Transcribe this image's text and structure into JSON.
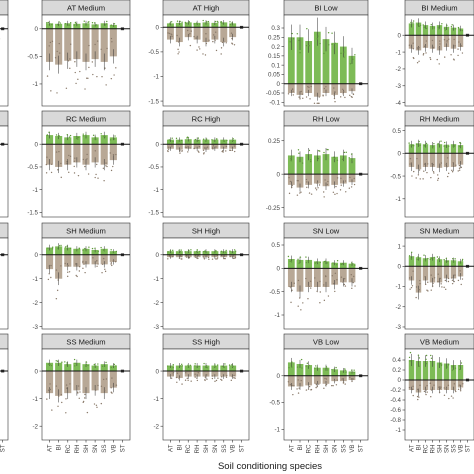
{
  "chart_data": {
    "type": "bar",
    "xlabel": "Soil conditioning species",
    "ylabel": "",
    "categories": [
      "AT",
      "BI",
      "RC",
      "RH",
      "SH",
      "SN",
      "SS",
      "VB",
      "ST"
    ],
    "legend": "none",
    "grid": false,
    "colors": {
      "positive": "#7dbb56",
      "negative": "#b8a896",
      "error_bar": "#333333",
      "points_pos": "#5f9a3a",
      "points_neg": "#8a7a6a",
      "strip": "#d9d9d9"
    },
    "panels": [
      {
        "title": "",
        "row": 0,
        "col": 0,
        "show_y_ticks": false,
        "ylim": [
          -1.4,
          0.25
        ],
        "yticks": [],
        "series": [
          {
            "name": "pos",
            "values": [
              0.05,
              0.05,
              0.05,
              0.05,
              0.05,
              0.05,
              0.05,
              0.05,
              0.0
            ]
          },
          {
            "name": "neg",
            "values": [
              -0.3,
              -0.35,
              -0.3,
              -0.3,
              -0.25,
              -0.3,
              -0.3,
              -0.3,
              0.0
            ]
          }
        ]
      },
      {
        "title": "AT Medium",
        "row": 0,
        "col": 1,
        "ylim": [
          -1.4,
          0.25
        ],
        "yticks": [
          -1.0,
          -0.5,
          0.0
        ],
        "series": [
          {
            "name": "pos",
            "values": [
              0.1,
              0.09,
              0.1,
              0.09,
              0.1,
              0.08,
              0.1,
              0.07,
              0.0
            ]
          },
          {
            "name": "neg",
            "values": [
              -0.6,
              -0.65,
              -0.58,
              -0.55,
              -0.6,
              -0.55,
              -0.6,
              -0.5,
              0.0
            ]
          }
        ]
      },
      {
        "title": "AT High",
        "row": 0,
        "col": 2,
        "ylim": [
          -1.6,
          0.25
        ],
        "yticks": [
          -1.5,
          -1.0,
          -0.5,
          0.0
        ],
        "series": [
          {
            "name": "pos",
            "values": [
              0.08,
              0.09,
              0.1,
              0.09,
              0.1,
              0.09,
              0.1,
              0.08,
              0.0
            ]
          },
          {
            "name": "neg",
            "values": [
              -0.25,
              -0.3,
              -0.2,
              -0.25,
              -0.3,
              -0.25,
              -0.3,
              -0.2,
              0.0
            ]
          }
        ]
      },
      {
        "title": "BI Low",
        "row": 0,
        "col": 3,
        "ylim": [
          -0.12,
          0.37
        ],
        "yticks": [
          -0.1,
          -0.05,
          0.0,
          0.05,
          0.1,
          0.15,
          0.2,
          0.25,
          0.3
        ],
        "series": [
          {
            "name": "pos",
            "values": [
              0.25,
              0.25,
              0.23,
              0.28,
              0.24,
              0.22,
              0.2,
              0.15,
              0.0
            ]
          },
          {
            "name": "neg",
            "values": [
              -0.05,
              -0.06,
              -0.05,
              -0.07,
              -0.05,
              -0.06,
              -0.05,
              -0.04,
              0.0
            ]
          }
        ]
      },
      {
        "title": "BI Medium",
        "row": 0,
        "col": 4,
        "ylim": [
          -4.2,
          1.2
        ],
        "yticks": [
          -4,
          -3,
          -2,
          -1,
          0
        ],
        "series": [
          {
            "name": "pos",
            "values": [
              0.7,
              0.75,
              0.6,
              0.55,
              0.6,
              0.5,
              0.45,
              0.4,
              0.0
            ]
          },
          {
            "name": "neg",
            "values": [
              -0.8,
              -0.9,
              -0.75,
              -0.8,
              -0.9,
              -0.7,
              -0.8,
              -0.7,
              0.0
            ]
          }
        ]
      },
      {
        "title": "",
        "row": 1,
        "col": 0,
        "show_y_ticks": false,
        "ylim": [
          -1.6,
          0.4
        ],
        "yticks": [],
        "series": [
          {
            "name": "pos",
            "values": [
              0.1,
              0.1,
              0.1,
              0.1,
              0.1,
              0.1,
              0.1,
              0.1,
              0.0
            ]
          },
          {
            "name": "neg",
            "values": [
              -0.2,
              -0.25,
              -0.2,
              -0.2,
              -0.2,
              -0.2,
              -0.2,
              -0.2,
              0.0
            ]
          }
        ]
      },
      {
        "title": "RC Medium",
        "row": 1,
        "col": 1,
        "ylim": [
          -1.6,
          0.4
        ],
        "yticks": [
          -1.5,
          -1.0,
          -0.5,
          0.0
        ],
        "series": [
          {
            "name": "pos",
            "values": [
              0.2,
              0.18,
              0.15,
              0.18,
              0.2,
              0.15,
              0.2,
              0.15,
              0.0
            ]
          },
          {
            "name": "neg",
            "values": [
              -0.45,
              -0.5,
              -0.45,
              -0.4,
              -0.45,
              -0.4,
              -0.45,
              -0.35,
              0.0
            ]
          }
        ]
      },
      {
        "title": "RC High",
        "row": 1,
        "col": 2,
        "ylim": [
          -1.6,
          0.4
        ],
        "yticks": [
          -1.5,
          -1.0,
          -0.5,
          0.0
        ],
        "series": [
          {
            "name": "pos",
            "values": [
              0.1,
              0.1,
              0.11,
              0.1,
              0.1,
              0.1,
              0.1,
              0.1,
              0.0
            ]
          },
          {
            "name": "neg",
            "values": [
              -0.1,
              -0.12,
              -0.1,
              -0.1,
              -0.12,
              -0.1,
              -0.1,
              -0.1,
              0.0
            ]
          }
        ]
      },
      {
        "title": "RH Low",
        "row": 1,
        "col": 3,
        "ylim": [
          -0.32,
          0.36
        ],
        "yticks": [
          -0.25,
          0.0,
          0.25
        ],
        "series": [
          {
            "name": "pos",
            "values": [
              0.14,
              0.13,
              0.15,
              0.14,
              0.15,
              0.13,
              0.14,
              0.12,
              0.0
            ]
          },
          {
            "name": "neg",
            "values": [
              -0.08,
              -0.1,
              -0.08,
              -0.07,
              -0.09,
              -0.08,
              -0.07,
              -0.06,
              0.0
            ]
          }
        ]
      },
      {
        "title": "RH Medium",
        "row": 1,
        "col": 4,
        "ylim": [
          -1.4,
          0.6
        ],
        "yticks": [
          -1.0,
          -0.5,
          0.0,
          0.5
        ],
        "series": [
          {
            "name": "pos",
            "values": [
              0.2,
              0.22,
              0.2,
              0.18,
              0.2,
              0.19,
              0.2,
              0.18,
              0.0
            ]
          },
          {
            "name": "neg",
            "values": [
              -0.3,
              -0.35,
              -0.3,
              -0.3,
              -0.32,
              -0.3,
              -0.3,
              -0.25,
              0.0
            ]
          }
        ]
      },
      {
        "title": "",
        "row": 2,
        "col": 0,
        "show_y_ticks": false,
        "ylim": [
          -3.1,
          0.7
        ],
        "yticks": [],
        "series": [
          {
            "name": "pos",
            "values": [
              0.2,
              0.2,
              0.2,
              0.2,
              0.2,
              0.2,
              0.2,
              0.2,
              0.0
            ]
          },
          {
            "name": "neg",
            "values": [
              -0.6,
              -0.7,
              -0.6,
              -0.6,
              -0.6,
              -0.6,
              -0.6,
              -0.6,
              0.0
            ]
          }
        ]
      },
      {
        "title": "SH Medium",
        "row": 2,
        "col": 1,
        "ylim": [
          -3.1,
          0.7
        ],
        "yticks": [
          -3,
          -2,
          -1,
          0
        ],
        "series": [
          {
            "name": "pos",
            "values": [
              0.3,
              0.35,
              0.3,
              0.25,
              0.25,
              0.2,
              0.25,
              0.15,
              0.0
            ]
          },
          {
            "name": "neg",
            "values": [
              -0.6,
              -1.0,
              -0.5,
              -0.5,
              -0.4,
              -0.4,
              -0.4,
              -0.3,
              0.0
            ]
          }
        ]
      },
      {
        "title": "SH High",
        "row": 2,
        "col": 2,
        "ylim": [
          -3.1,
          0.7
        ],
        "yticks": [
          -3,
          -2,
          -1,
          0
        ],
        "series": [
          {
            "name": "pos",
            "values": [
              0.15,
              0.15,
              0.15,
              0.15,
              0.15,
              0.15,
              0.15,
              0.15,
              0.0
            ]
          },
          {
            "name": "neg",
            "values": [
              -0.1,
              -0.1,
              -0.1,
              -0.1,
              -0.1,
              -0.1,
              -0.1,
              -0.1,
              0.0
            ]
          }
        ]
      },
      {
        "title": "SN Low",
        "row": 2,
        "col": 3,
        "ylim": [
          -1.3,
          0.65
        ],
        "yticks": [
          -1.0,
          -0.5,
          0.0,
          0.5
        ],
        "series": [
          {
            "name": "pos",
            "values": [
              0.2,
              0.18,
              0.18,
              0.15,
              0.15,
              0.12,
              0.12,
              0.1,
              0.0
            ]
          },
          {
            "name": "neg",
            "values": [
              -0.4,
              -0.5,
              -0.4,
              -0.4,
              -0.4,
              -0.35,
              -0.3,
              -0.3,
              0.0
            ]
          }
        ]
      },
      {
        "title": "SN Medium",
        "row": 2,
        "col": 4,
        "ylim": [
          -3.1,
          1.4
        ],
        "yticks": [
          -3,
          -2,
          -1,
          0,
          1
        ],
        "series": [
          {
            "name": "pos",
            "values": [
              0.5,
              0.45,
              0.4,
              0.45,
              0.35,
              0.3,
              0.3,
              0.25,
              0.0
            ]
          },
          {
            "name": "neg",
            "values": [
              -0.7,
              -1.3,
              -0.7,
              -0.8,
              -0.8,
              -0.6,
              -0.6,
              -0.5,
              0.0
            ]
          }
        ]
      },
      {
        "title": "",
        "row": 3,
        "col": 0,
        "show_y_ticks": false,
        "ylim": [
          -2.5,
          0.8
        ],
        "yticks": [],
        "series": [
          {
            "name": "pos",
            "values": [
              0.3,
              0.3,
              0.3,
              0.3,
              0.3,
              0.3,
              0.3,
              0.3,
              0.0
            ]
          },
          {
            "name": "neg",
            "values": [
              -0.4,
              -0.45,
              -0.4,
              -0.4,
              -0.4,
              -0.4,
              -0.4,
              -0.4,
              0.0
            ]
          }
        ]
      },
      {
        "title": "SS Medium",
        "row": 3,
        "col": 1,
        "ylim": [
          -2.5,
          0.8
        ],
        "yticks": [
          -2,
          -1,
          0
        ],
        "series": [
          {
            "name": "pos",
            "values": [
              0.3,
              0.3,
              0.25,
              0.3,
              0.25,
              0.2,
              0.25,
              0.2,
              0.0
            ]
          },
          {
            "name": "neg",
            "values": [
              -0.8,
              -0.9,
              -0.8,
              -0.7,
              -0.8,
              -0.7,
              -0.8,
              -0.6,
              0.0
            ]
          }
        ]
      },
      {
        "title": "SS High",
        "row": 3,
        "col": 2,
        "ylim": [
          -2.5,
          0.8
        ],
        "yticks": [
          -2,
          -1,
          0
        ],
        "series": [
          {
            "name": "pos",
            "values": [
              0.2,
              0.2,
              0.2,
              0.2,
              0.2,
              0.2,
              0.2,
              0.2,
              0.0
            ]
          },
          {
            "name": "neg",
            "values": [
              -0.2,
              -0.25,
              -0.2,
              -0.2,
              -0.2,
              -0.2,
              -0.2,
              -0.2,
              0.0
            ]
          }
        ]
      },
      {
        "title": "VB Low",
        "row": 3,
        "col": 3,
        "ylim": [
          -1.2,
          0.5
        ],
        "yticks": [
          -1.0,
          -0.5,
          0.0
        ],
        "series": [
          {
            "name": "pos",
            "values": [
              0.25,
              0.22,
              0.2,
              0.15,
              0.15,
              0.12,
              0.1,
              0.08,
              0.0
            ]
          },
          {
            "name": "neg",
            "values": [
              -0.2,
              -0.2,
              -0.18,
              -0.15,
              -0.15,
              -0.1,
              -0.1,
              -0.08,
              0.0
            ]
          }
        ]
      },
      {
        "title": "VB Medium",
        "row": 3,
        "col": 4,
        "ylim": [
          -1.2,
          0.62
        ],
        "yticks": [
          -1.0,
          -0.8,
          -0.6,
          -0.4,
          -0.2,
          0.0,
          0.2,
          0.4
        ],
        "series": [
          {
            "name": "pos",
            "values": [
              0.4,
              0.38,
              0.38,
              0.38,
              0.35,
              0.33,
              0.3,
              0.3,
              0.0
            ]
          },
          {
            "name": "neg",
            "values": [
              -0.2,
              -0.25,
              -0.2,
              -0.2,
              -0.2,
              -0.2,
              -0.2,
              -0.15,
              0.0
            ]
          }
        ]
      }
    ]
  }
}
